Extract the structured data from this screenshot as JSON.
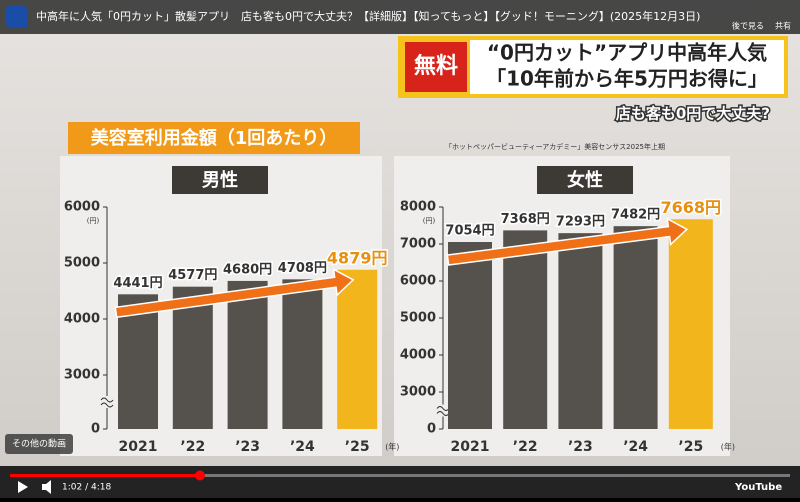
{
  "video_title": "中高年に人気「0円カット」散髪アプリ　店も客も0円で大丈夫？【詳細版】【知ってもっと】【グッド！モーニング】(2025年12月3日)",
  "watch_later": "後で見る",
  "share": "共有",
  "banner": {
    "badge": "無料",
    "line1": "“0円カット”アプリ中高年人気",
    "line2": "「10年前から年5万円お得に」",
    "sub": "店も客も0円で大丈夫?"
  },
  "section_title": "美容室利用金額（1回あたり）",
  "source": "「ホットペッパービューティーアカデミー」美容センサス2025年上期",
  "more_videos": "その他の動画",
  "time": "1:02 / 4:18",
  "brand": "YouTube",
  "chart_data": [
    {
      "type": "bar",
      "title": "男性",
      "y_unit": "(円)",
      "x_unit": "(年)",
      "categories": [
        "2021",
        "’22",
        "’23",
        "’24",
        "’25"
      ],
      "values": [
        4441,
        4577,
        4680,
        4708,
        4879
      ],
      "value_labels": [
        "4441円",
        "4577円",
        "4680円",
        "4708円",
        "4879円"
      ],
      "colors": [
        "#55524d",
        "#55524d",
        "#55524d",
        "#55524d",
        "#f2b51c"
      ],
      "ylim": [
        0,
        6000
      ],
      "axis_break": [
        0,
        3000
      ],
      "yticks": [
        0,
        3000,
        4000,
        5000,
        6000
      ]
    },
    {
      "type": "bar",
      "title": "女性",
      "y_unit": "(円)",
      "x_unit": "(年)",
      "categories": [
        "2021",
        "’22",
        "’23",
        "’24",
        "’25"
      ],
      "values": [
        7054,
        7368,
        7293,
        7482,
        7668
      ],
      "value_labels": [
        "7054円",
        "7368円",
        "7293円",
        "7482円",
        "7668円"
      ],
      "colors": [
        "#55524d",
        "#55524d",
        "#55524d",
        "#55524d",
        "#f2b51c"
      ],
      "ylim": [
        0,
        8000
      ],
      "axis_break": [
        0,
        3000
      ],
      "yticks": [
        0,
        3000,
        4000,
        5000,
        6000,
        7000,
        8000
      ]
    }
  ]
}
